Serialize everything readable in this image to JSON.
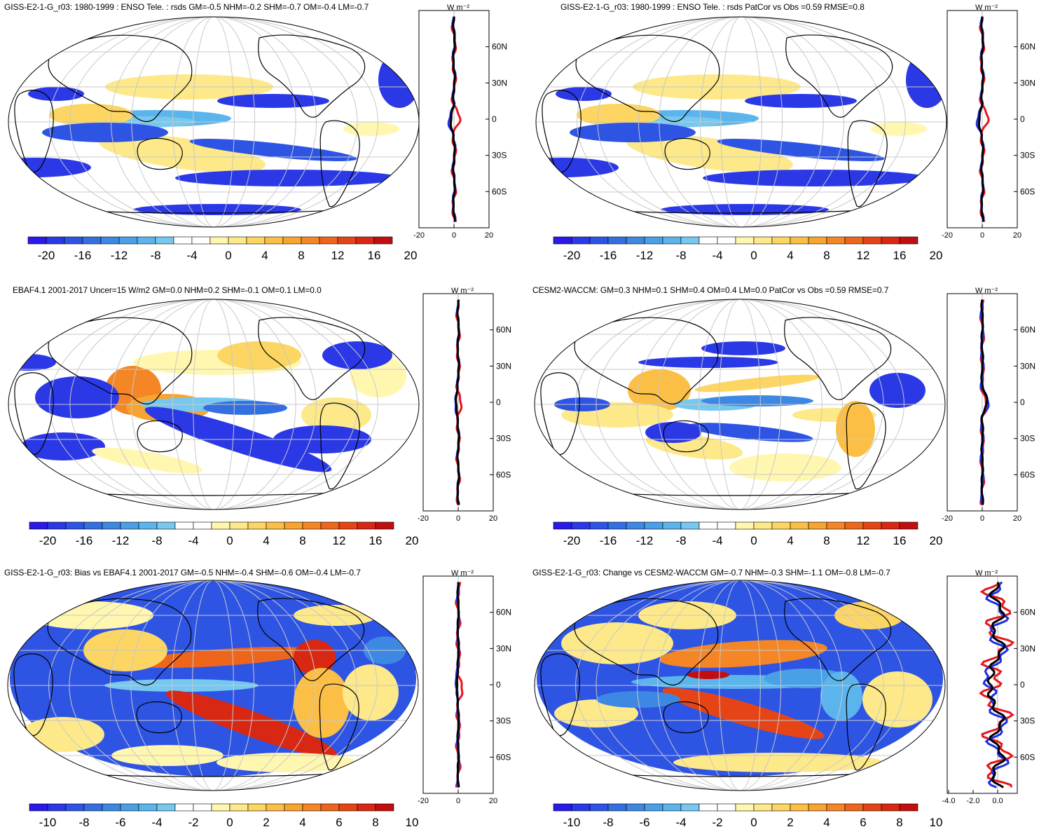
{
  "units": "W m⁻²",
  "lat_labels": [
    "60N",
    "30N",
    "0",
    "30S",
    "60S"
  ],
  "colors": {
    "neg_scale": [
      "#2a1ae8",
      "#2b38e6",
      "#2e54e4",
      "#346fe1",
      "#3d88e3",
      "#4aa0e6",
      "#5bb5ec",
      "#77c8f0"
    ],
    "pos_scale": [
      "#fff7b0",
      "#fde98a",
      "#fcd563",
      "#fbbf45",
      "#f8a431",
      "#f48625",
      "#ee661c",
      "#e54516",
      "#d82813",
      "#c30e10"
    ],
    "zm_red": "#e8141a",
    "zm_blue": "#1a2ee6",
    "zm_black": "#000000"
  },
  "panels": [
    {
      "title": "GISS-E2-1-G_r03: 1980-1999 : ENSO Tele. : rsds GM=-0.5 NHM=-0.2 SHM=-0.7 OM=-0.4 LM=-0.7",
      "colorbar_labels": [
        "-20",
        "-16",
        "-12",
        "-8",
        "-4",
        "0",
        "4",
        "8",
        "12",
        "16",
        "20"
      ],
      "zm_ticks": [
        "-20",
        "0",
        "20"
      ]
    },
    {
      "title": "GISS-E2-1-G_r03: 1980-1999 : ENSO Tele. : rsds PatCor vs Obs =0.59 RMSE=0.8",
      "colorbar_labels": [
        "-20",
        "-16",
        "-12",
        "-8",
        "-4",
        "0",
        "4",
        "8",
        "12",
        "16",
        "20"
      ],
      "zm_ticks": [
        "-20",
        "0",
        "20"
      ]
    },
    {
      "title": "EBAF4.1 2001-2017 Uncer=15 W/m2 GM=0.0 NHM=0.2 SHM=-0.1 OM=0.1 LM=0.0",
      "colorbar_labels": [
        "-20",
        "-16",
        "-12",
        "-8",
        "-4",
        "0",
        "4",
        "8",
        "12",
        "16",
        "20"
      ],
      "zm_ticks": [
        "-20",
        "0",
        "20"
      ]
    },
    {
      "title": "CESM2-WACCM: GM=0.3 NHM=0.1 SHM=0.4 OM=0.4 LM=0.0 PatCor vs Obs =0.59 RMSE=0.7",
      "colorbar_labels": [
        "-20",
        "-16",
        "-12",
        "-8",
        "-4",
        "0",
        "4",
        "8",
        "12",
        "16",
        "20"
      ],
      "zm_ticks": [
        "-20",
        "0",
        "20"
      ]
    },
    {
      "title": "GISS-E2-1-G_r03: Bias vs EBAF4.1 2001-2017 GM=-0.5 NHM=-0.4 SHM=-0.6 OM=-0.4 LM=-0.7",
      "colorbar_labels": [
        "-10",
        "-8",
        "-6",
        "-4",
        "-2",
        "0",
        "2",
        "4",
        "6",
        "8",
        "10"
      ],
      "zm_ticks": [
        "-20",
        "0",
        "20"
      ]
    },
    {
      "title": "GISS-E2-1-G_r03: Change vs CESM2-WACCM GM=-0.7 NHM=-0.3 SHM=-1.1 OM=-0.8 LM=-0.7",
      "colorbar_labels": [
        "-10",
        "-8",
        "-6",
        "-4",
        "-2",
        "0",
        "2",
        "4",
        "6",
        "8",
        "10"
      ],
      "zm_ticks": [
        "-4.0",
        "-2.0",
        "0.0"
      ]
    }
  ]
}
